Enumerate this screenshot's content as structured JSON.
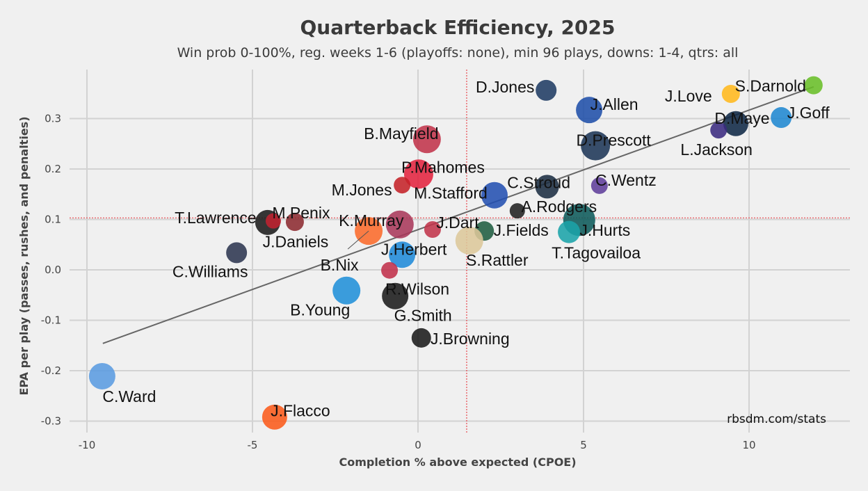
{
  "chart_data": {
    "type": "scatter",
    "title": "Quarterback Efficiency, 2025",
    "subtitle": "Win prob 0-100%, reg. weeks 1-6 (playoffs: none), min 96 plays, downs: 1-4, qtrs: all",
    "xlabel": "Completion % above expected (CPOE)",
    "ylabel": "EPA per play (passes, rushes, and penalties)",
    "xlim": [
      -10.5,
      12.8
    ],
    "ylim": [
      -0.32,
      0.39
    ],
    "xticks": [
      -10,
      -5,
      0,
      5,
      10
    ],
    "xtick_labels": [
      "-10",
      "-5",
      "0",
      "5",
      "10"
    ],
    "yticks": [
      -0.3,
      -0.2,
      -0.1,
      0.0,
      0.1,
      0.2,
      0.3
    ],
    "ytick_labels": [
      "-0.3",
      "-0.2",
      "-0.1",
      "0.0",
      "0.1",
      "0.2",
      "0.3"
    ],
    "grid": true,
    "mean_lines": {
      "x": 1.47,
      "y": 0.103,
      "color": "#e8474f"
    },
    "trend_line": {
      "x": [
        -9.52,
        11.95
      ],
      "y": [
        -0.146,
        0.363
      ],
      "color": "#666666"
    },
    "source": "rbsdm.com/stats",
    "size_note": "point size proportional to plays (relative units)",
    "points": [
      {
        "name": "D.Jones",
        "x": 3.87,
        "y": 0.356,
        "size": 15,
        "color": "#1f3b63"
      },
      {
        "name": "J.Allen",
        "x": 5.17,
        "y": 0.317,
        "size": 19,
        "color": "#1f4fa8"
      },
      {
        "name": "J.Love",
        "x": 9.45,
        "y": 0.349,
        "size": 13,
        "color": "#ffb81c"
      },
      {
        "name": "S.Darnold",
        "x": 11.95,
        "y": 0.366,
        "size": 13,
        "color": "#69be28"
      },
      {
        "name": "D.Maye",
        "x": 9.6,
        "y": 0.29,
        "size": 18,
        "color": "#0f2845"
      },
      {
        "name": "J.Goff",
        "x": 10.97,
        "y": 0.302,
        "size": 15,
        "color": "#1f88d0"
      },
      {
        "name": "L.Jackson",
        "x": 9.08,
        "y": 0.277,
        "size": 12,
        "color": "#3a2a80"
      },
      {
        "name": "D.Prescott",
        "x": 5.36,
        "y": 0.246,
        "size": 21,
        "color": "#1d3557"
      },
      {
        "name": "B.Mayfield",
        "x": 0.27,
        "y": 0.259,
        "size": 20,
        "color": "#c0334a"
      },
      {
        "name": "P.Mahomes",
        "x": 0.02,
        "y": 0.19,
        "size": 21,
        "color": "#e3233f"
      },
      {
        "name": "M.Jones",
        "x": -0.48,
        "y": 0.168,
        "size": 12,
        "color": "#c42228"
      },
      {
        "name": "M.Stafford",
        "x": 2.31,
        "y": 0.148,
        "size": 19,
        "color": "#2350b0"
      },
      {
        "name": "C.Stroud",
        "x": 3.9,
        "y": 0.165,
        "size": 17,
        "color": "#1b2d42"
      },
      {
        "name": "C.Wentz",
        "x": 5.48,
        "y": 0.167,
        "size": 12,
        "color": "#5e3d9a"
      },
      {
        "name": "A.Rodgers",
        "x": 3.0,
        "y": 0.117,
        "size": 11,
        "color": "#202020"
      },
      {
        "name": "J.Hurts",
        "x": 4.87,
        "y": 0.099,
        "size": 23,
        "color": "#0d5a5a"
      },
      {
        "name": "T.Tagovailoa",
        "x": 4.56,
        "y": 0.075,
        "size": 16,
        "color": "#1aa3a8"
      },
      {
        "name": "J.Fields",
        "x": 2.0,
        "y": 0.077,
        "size": 14,
        "color": "#1f5c40"
      },
      {
        "name": "J.Dart",
        "x": 0.44,
        "y": 0.08,
        "size": 12,
        "color": "#c0344a"
      },
      {
        "name": "S.Rattler",
        "x": 1.55,
        "y": 0.058,
        "size": 20,
        "color": "#dcc79a"
      },
      {
        "name": "K.Murray",
        "x": -0.55,
        "y": 0.09,
        "size": 20,
        "color": "#a8385a"
      },
      {
        "name": "B.Nix",
        "x": -1.49,
        "y": 0.077,
        "size": 20,
        "color": "#fb6a2a"
      },
      {
        "name": "J.Herbert",
        "x": -0.48,
        "y": 0.03,
        "size": 19,
        "color": "#1f8ad8"
      },
      {
        "name": "T.Lawrence",
        "x": -4.54,
        "y": 0.094,
        "size": 18,
        "color": "#1a1a1a"
      },
      {
        "name": "M.Penix",
        "x": -3.72,
        "y": 0.095,
        "size": 13,
        "color": "#8c2a30"
      },
      {
        "name": "J.Daniels",
        "x": -4.37,
        "y": 0.097,
        "size": 11,
        "color": "#c02230"
      },
      {
        "name": "C.Williams",
        "x": -5.48,
        "y": 0.034,
        "size": 15,
        "color": "#2c3550"
      },
      {
        "name": "B.Young",
        "x": -2.16,
        "y": -0.041,
        "size": 20,
        "color": "#2090d8"
      },
      {
        "name": "R.Wilson",
        "x": -0.86,
        "y": -0.001,
        "size": 12,
        "color": "#c0304a"
      },
      {
        "name": "G.Smith",
        "x": -0.69,
        "y": -0.052,
        "size": 19,
        "color": "#1a1a1a"
      },
      {
        "name": "J.Browning",
        "x": 0.1,
        "y": -0.135,
        "size": 14,
        "color": "#1a1a1a"
      },
      {
        "name": "C.Ward",
        "x": -9.54,
        "y": -0.211,
        "size": 19,
        "color": "#5a9be0"
      },
      {
        "name": "J.Flacco",
        "x": -4.33,
        "y": -0.292,
        "size": 18,
        "color": "#fb5a1a"
      }
    ]
  }
}
